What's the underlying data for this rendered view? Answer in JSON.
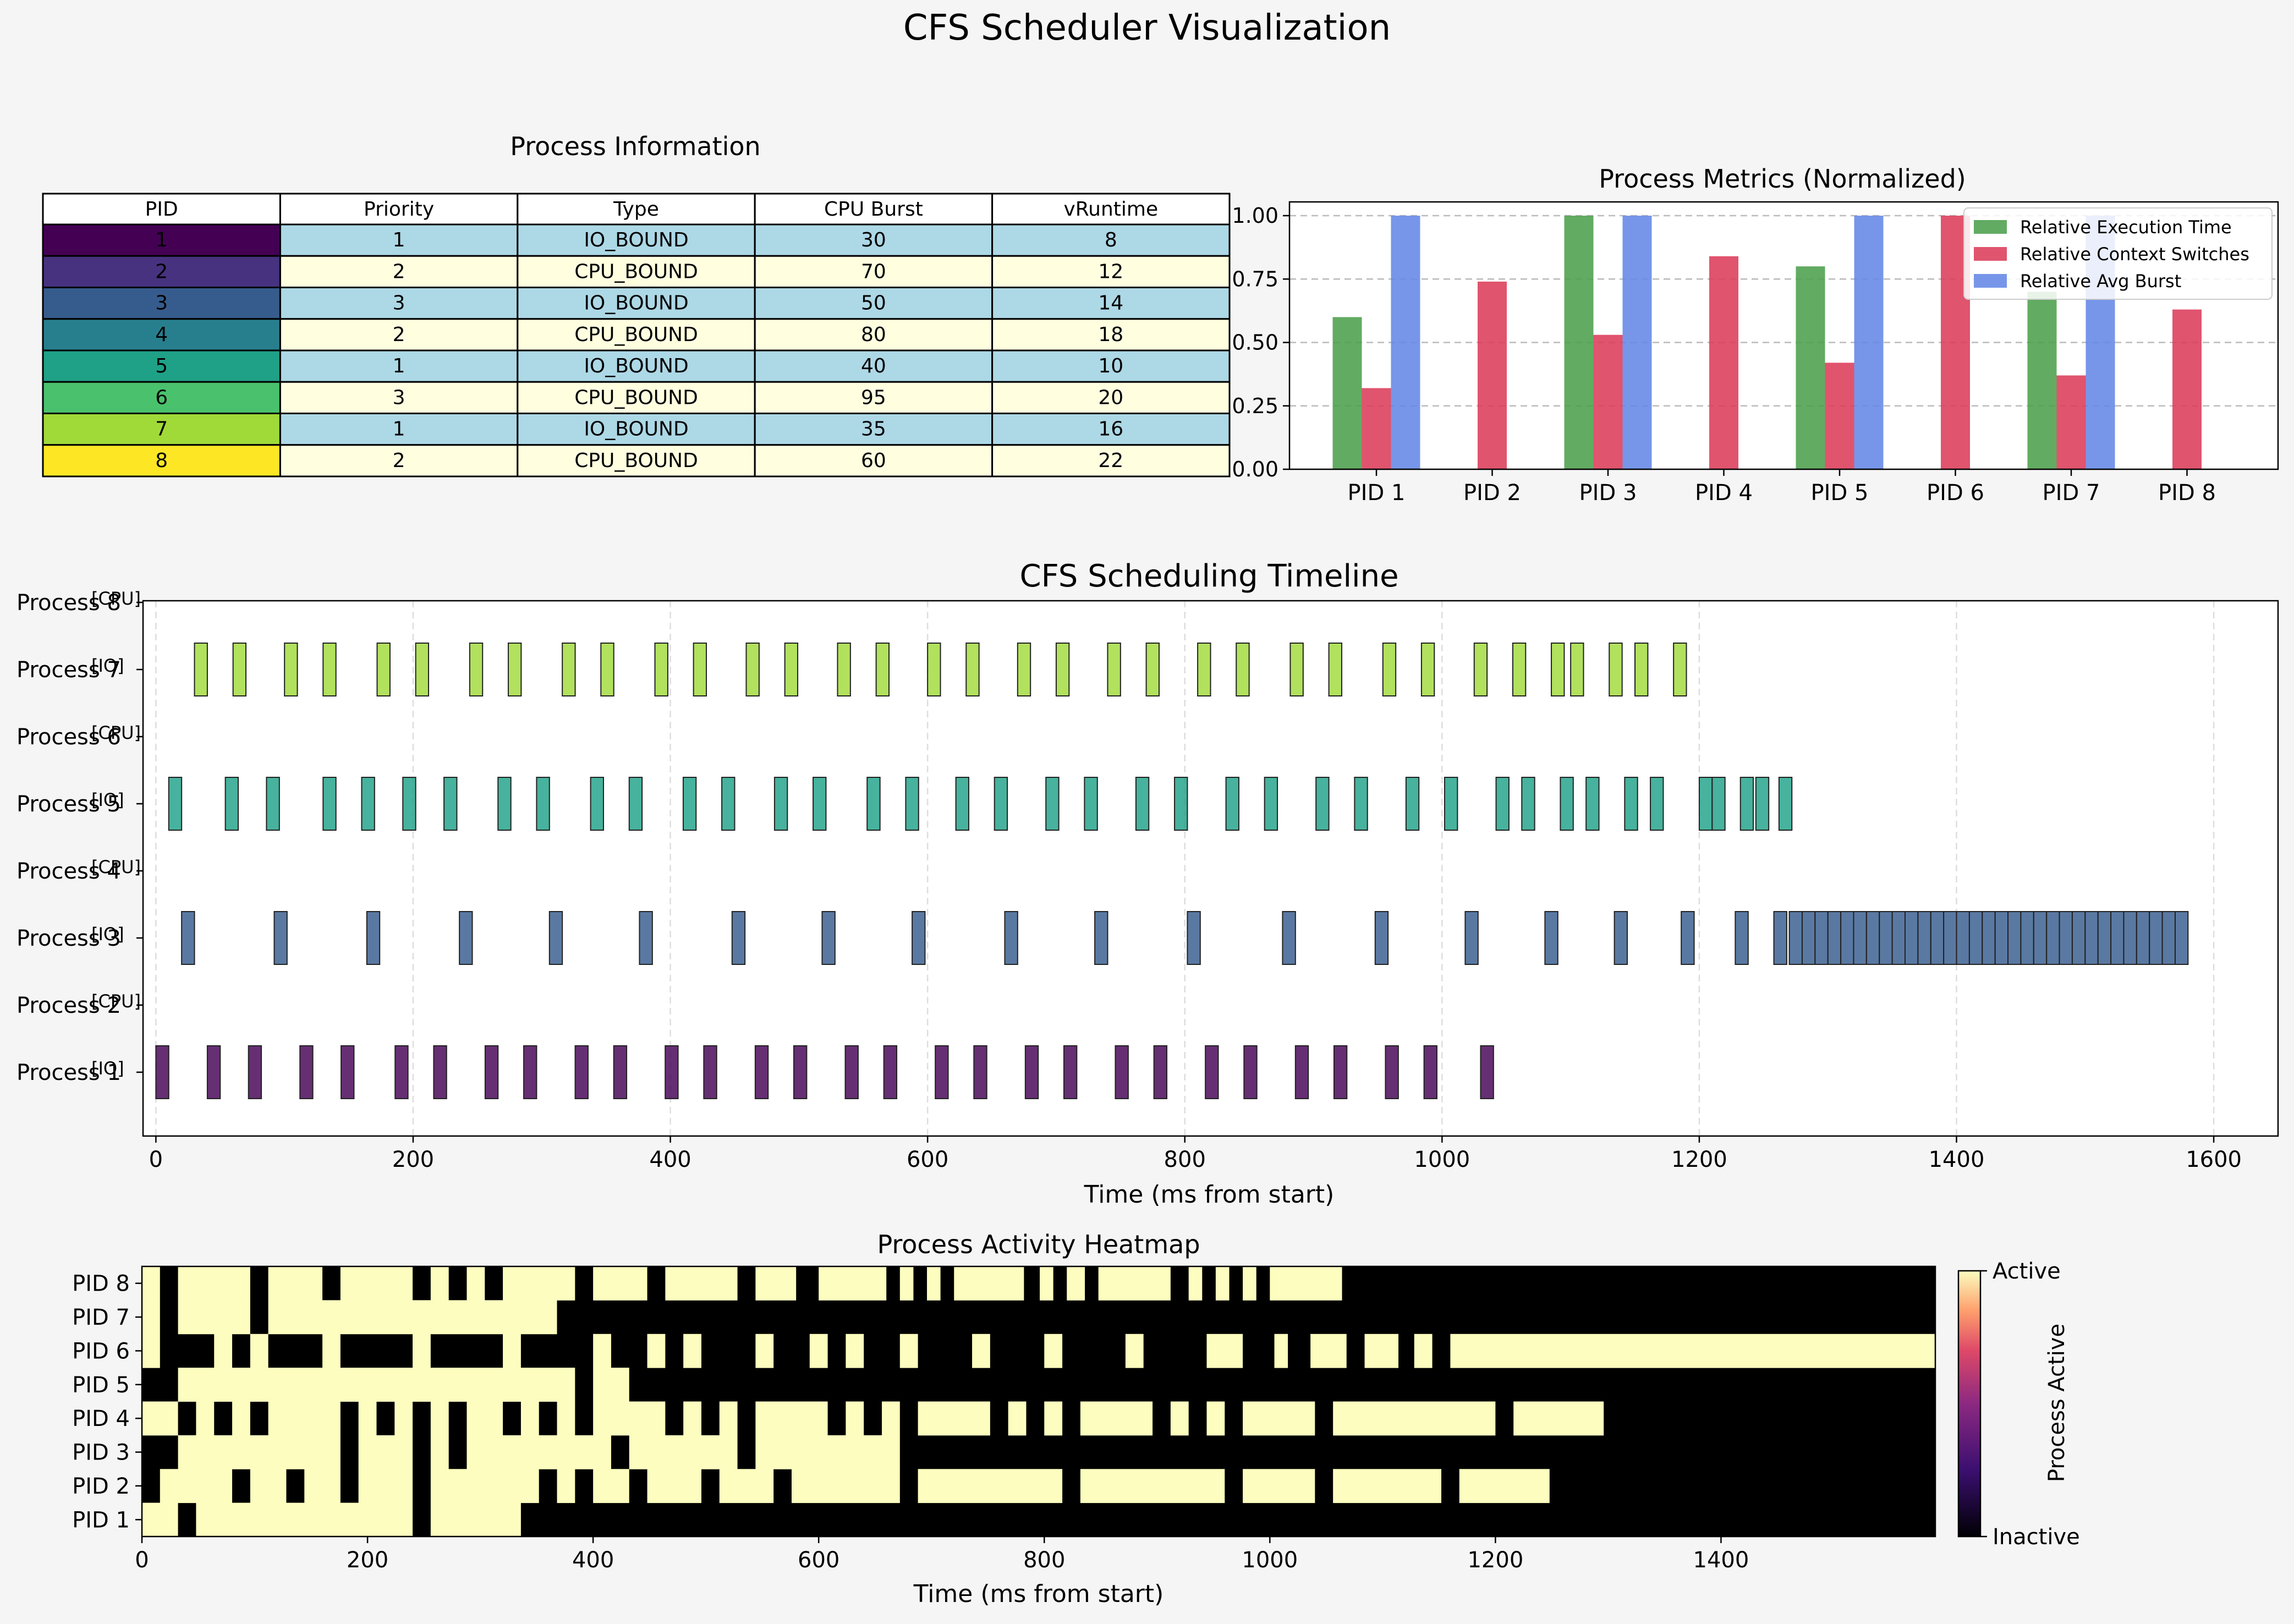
{
  "title": "CFS Scheduler Visualization",
  "colors": {
    "background": "#f5f5f5",
    "io_row": "#add8e6",
    "cpu_row": "#ffffe0",
    "pid": [
      "#440154",
      "#46327e",
      "#365c8d",
      "#277f8e",
      "#1fa187",
      "#4ac16d",
      "#a0da39",
      "#fde725"
    ],
    "exec": "#4c9f4c",
    "ctx": "#dc3c5a",
    "burst": "#6487e6",
    "heat_active": "#fcfdbf",
    "heat_inactive": "#000000"
  },
  "process_table": {
    "title": "Process Information",
    "columns": [
      "PID",
      "Priority",
      "Type",
      "CPU Burst",
      "vRuntime"
    ],
    "rows": [
      [
        "1",
        "1",
        "IO_BOUND",
        "30",
        "8"
      ],
      [
        "2",
        "2",
        "CPU_BOUND",
        "70",
        "12"
      ],
      [
        "3",
        "3",
        "IO_BOUND",
        "50",
        "14"
      ],
      [
        "4",
        "2",
        "CPU_BOUND",
        "80",
        "18"
      ],
      [
        "5",
        "1",
        "IO_BOUND",
        "40",
        "10"
      ],
      [
        "6",
        "3",
        "CPU_BOUND",
        "95",
        "20"
      ],
      [
        "7",
        "1",
        "IO_BOUND",
        "35",
        "16"
      ],
      [
        "8",
        "2",
        "CPU_BOUND",
        "60",
        "22"
      ]
    ]
  },
  "chart_data": [
    {
      "type": "bar",
      "title": "Process Metrics (Normalized)",
      "categories": [
        "PID 1",
        "PID 2",
        "PID 3",
        "PID 4",
        "PID 5",
        "PID 6",
        "PID 7",
        "PID 8"
      ],
      "series": [
        {
          "name": "Relative Execution Time",
          "values": [
            0.6,
            0,
            1.0,
            0,
            0.8,
            0,
            0.7,
            0
          ]
        },
        {
          "name": "Relative Context Switches",
          "values": [
            0.32,
            0.74,
            0.53,
            0.84,
            0.42,
            1.0,
            0.37,
            0.63
          ]
        },
        {
          "name": "Relative Avg Burst",
          "values": [
            1.0,
            0,
            1.0,
            0,
            1.0,
            0,
            1.0,
            0
          ]
        }
      ],
      "ylim": [
        0,
        1.0
      ],
      "yticks": [
        "0.00",
        "0.25",
        "0.50",
        "0.75",
        "1.00"
      ],
      "grid": true,
      "legend": "top-right"
    },
    {
      "type": "gantt",
      "title": "CFS Scheduling Timeline",
      "xlabel": "Time (ms from start)",
      "xlim": [
        -10,
        1650
      ],
      "xticks": [
        "0",
        "200",
        "400",
        "600",
        "800",
        "1000",
        "1200",
        "1400",
        "1600"
      ],
      "row_labels": [
        "Process 8",
        "Process 7",
        "Process 6",
        "Process 5",
        "Process 4",
        "Process 3",
        "Process 2",
        "Process 1"
      ],
      "type_tags": [
        "[CPU]",
        "[IO]",
        "[CPU]",
        "[IO]",
        "[CPU]",
        "[IO]",
        "[CPU]",
        "[IO]"
      ],
      "slice_width": 10,
      "bursts": {
        "7": [
          30,
          60,
          100,
          130,
          172,
          202,
          244,
          274,
          316,
          346,
          388,
          418,
          459,
          489,
          530,
          560,
          600,
          630,
          670,
          700,
          740,
          770,
          810,
          840,
          882,
          912,
          954,
          984,
          1025,
          1055,
          1085,
          1100,
          1130,
          1150,
          1180
        ],
        "5": [
          10,
          54,
          86,
          130,
          160,
          192,
          224,
          266,
          296,
          338,
          368,
          410,
          440,
          481,
          511,
          553,
          583,
          622,
          652,
          692,
          722,
          762,
          792,
          832,
          862,
          902,
          932,
          972,
          1002,
          1042,
          1062,
          1092,
          1112,
          1142,
          1162,
          1200,
          1210,
          1232,
          1244,
          1262
        ],
        "3": [
          20,
          92,
          164,
          236,
          306,
          376,
          448,
          518,
          588,
          660,
          730,
          802,
          876,
          948,
          1018,
          1080,
          1134,
          1186,
          1228,
          1258
        ],
        "3_dense": [
          1270,
          1580
        ],
        "1": [
          0,
          40,
          72,
          112,
          144,
          186,
          216,
          256,
          286,
          326,
          356,
          396,
          426,
          466,
          496,
          536,
          566,
          606,
          636,
          676,
          706,
          746,
          776,
          816,
          846,
          886,
          916,
          956,
          986,
          1030
        ]
      }
    },
    {
      "type": "heatmap",
      "title": "Process Activity Heatmap",
      "xlabel": "Time (ms from start)",
      "xlim": [
        0,
        1590
      ],
      "xticks": [
        "0",
        "200",
        "400",
        "600",
        "800",
        "1000",
        "1200",
        "1400"
      ],
      "rows": [
        "PID 8",
        "PID 7",
        "PID 6",
        "PID 5",
        "PID 4",
        "PID 3",
        "PID 2",
        "PID 1"
      ],
      "colorbar": {
        "label": "Process Active",
        "ticks": [
          "Active",
          "Inactive"
        ]
      },
      "active_intervals": {
        "PID 8": [
          [
            0,
            16
          ],
          [
            32,
            96
          ],
          [
            112,
            160
          ],
          [
            176,
            240
          ],
          [
            256,
            272
          ],
          [
            288,
            304
          ],
          [
            320,
            384
          ],
          [
            400,
            448
          ],
          [
            464,
            528
          ],
          [
            544,
            580
          ],
          [
            600,
            660
          ],
          [
            672,
            684
          ],
          [
            696,
            708
          ],
          [
            720,
            782
          ],
          [
            796,
            808
          ],
          [
            820,
            836
          ],
          [
            848,
            912
          ],
          [
            928,
            940
          ],
          [
            952,
            964
          ],
          [
            976,
            988
          ],
          [
            1000,
            1064
          ]
        ],
        "PID 7": [
          [
            0,
            16
          ],
          [
            32,
            96
          ],
          [
            112,
            368
          ]
        ],
        "PID 6": [
          [
            0,
            16
          ],
          [
            64,
            80
          ],
          [
            96,
            112
          ],
          [
            160,
            176
          ],
          [
            240,
            256
          ],
          [
            320,
            336
          ],
          [
            400,
            416
          ],
          [
            448,
            464
          ],
          [
            480,
            496
          ],
          [
            544,
            560
          ],
          [
            592,
            608
          ],
          [
            624,
            640
          ],
          [
            672,
            688
          ],
          [
            736,
            752
          ],
          [
            800,
            816
          ],
          [
            872,
            888
          ],
          [
            944,
            976
          ],
          [
            1004,
            1016
          ],
          [
            1036,
            1068
          ],
          [
            1084,
            1114
          ],
          [
            1128,
            1144
          ],
          [
            1160,
            1590
          ]
        ],
        "PID 5": [
          [
            32,
            384
          ],
          [
            400,
            432
          ]
        ],
        "PID 4": [
          [
            0,
            32
          ],
          [
            48,
            64
          ],
          [
            80,
            96
          ],
          [
            112,
            176
          ],
          [
            192,
            208
          ],
          [
            224,
            240
          ],
          [
            256,
            272
          ],
          [
            288,
            320
          ],
          [
            336,
            352
          ],
          [
            368,
            384
          ],
          [
            400,
            464
          ],
          [
            480,
            496
          ],
          [
            512,
            528
          ],
          [
            544,
            608
          ],
          [
            624,
            640
          ],
          [
            656,
            672
          ],
          [
            688,
            752
          ],
          [
            768,
            784
          ],
          [
            800,
            816
          ],
          [
            832,
            896
          ],
          [
            912,
            928
          ],
          [
            944,
            960
          ],
          [
            976,
            1040
          ],
          [
            1056,
            1200
          ],
          [
            1216,
            1296
          ]
        ],
        "PID 3": [
          [
            32,
            176
          ],
          [
            192,
            240
          ],
          [
            256,
            272
          ],
          [
            288,
            416
          ],
          [
            432,
            528
          ],
          [
            544,
            672
          ]
        ],
        "PID 2": [
          [
            16,
            80
          ],
          [
            96,
            128
          ],
          [
            144,
            176
          ],
          [
            192,
            240
          ],
          [
            256,
            352
          ],
          [
            368,
            384
          ],
          [
            400,
            432
          ],
          [
            448,
            496
          ],
          [
            512,
            560
          ],
          [
            576,
            672
          ],
          [
            688,
            816
          ],
          [
            832,
            960
          ],
          [
            976,
            1040
          ],
          [
            1056,
            1152
          ],
          [
            1168,
            1248
          ]
        ],
        "PID 1": [
          [
            0,
            32
          ],
          [
            48,
            240
          ],
          [
            256,
            336
          ]
        ]
      }
    }
  ]
}
